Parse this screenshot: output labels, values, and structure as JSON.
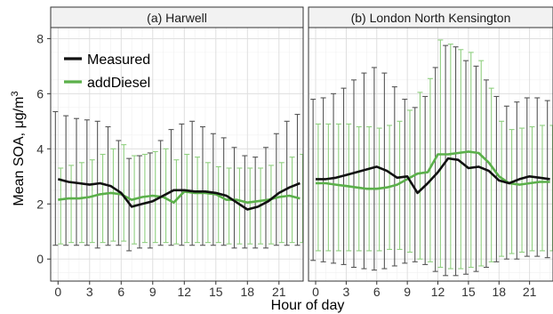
{
  "chart_data": {
    "type": "line",
    "xlabel": "Hour of day",
    "ylabel_parts": {
      "main": "Mean SOA,  μg/m",
      "superscript": "3"
    },
    "ylim": [
      -0.8,
      8.4
    ],
    "xlim": [
      -0.7,
      23.3
    ],
    "y_ticks": [
      0,
      2,
      4,
      6,
      8
    ],
    "x_ticks": [
      0,
      3,
      6,
      9,
      12,
      15,
      18,
      21
    ],
    "legend": {
      "position": "top-left",
      "entries": [
        "Measured",
        "addDiesel"
      ]
    },
    "colors": {
      "Measured": "#111111",
      "addDiesel": "#5bb04a",
      "Measured_err": "#555555",
      "addDiesel_err": "#8fcf7f"
    },
    "grid": true,
    "panels": [
      {
        "title": "(a) Harwell",
        "x": [
          0,
          1,
          2,
          3,
          4,
          5,
          6,
          7,
          8,
          9,
          10,
          11,
          12,
          13,
          14,
          15,
          16,
          17,
          18,
          19,
          20,
          21,
          22,
          23
        ],
        "series": [
          {
            "name": "Measured",
            "values": [
              2.9,
              2.8,
              2.75,
              2.7,
              2.75,
              2.65,
              2.4,
              1.9,
              2.0,
              2.1,
              2.3,
              2.5,
              2.5,
              2.45,
              2.45,
              2.4,
              2.3,
              2.05,
              1.8,
              1.9,
              2.1,
              2.4,
              2.6,
              2.75
            ],
            "lower": [
              0.5,
              0.5,
              0.5,
              0.5,
              0.4,
              0.5,
              0.5,
              0.3,
              0.4,
              0.4,
              0.5,
              0.5,
              0.5,
              0.5,
              0.5,
              0.5,
              0.5,
              0.4,
              0.4,
              0.4,
              0.4,
              0.5,
              0.5,
              0.5
            ],
            "upper": [
              5.35,
              5.2,
              5.1,
              5.05,
              5.0,
              4.8,
              4.3,
              3.65,
              3.75,
              3.85,
              4.3,
              4.7,
              4.9,
              5.0,
              4.8,
              4.55,
              4.4,
              4.05,
              3.75,
              3.7,
              4.05,
              4.55,
              5.0,
              5.25
            ]
          },
          {
            "name": "addDiesel",
            "values": [
              2.15,
              2.2,
              2.2,
              2.25,
              2.35,
              2.4,
              2.35,
              2.15,
              2.25,
              2.3,
              2.25,
              2.05,
              2.45,
              2.4,
              2.4,
              2.35,
              2.15,
              2.15,
              2.05,
              2.1,
              2.15,
              2.25,
              2.3,
              2.2
            ],
            "lower": [
              0.55,
              0.6,
              0.6,
              0.6,
              0.6,
              0.65,
              0.65,
              0.55,
              0.6,
              0.6,
              0.6,
              0.55,
              0.6,
              0.6,
              0.6,
              0.6,
              0.55,
              0.55,
              0.55,
              0.55,
              0.55,
              0.6,
              0.6,
              0.6
            ],
            "upper": [
              3.3,
              3.4,
              3.5,
              3.6,
              3.8,
              4.0,
              4.15,
              3.75,
              3.8,
              3.9,
              4.0,
              3.6,
              3.8,
              3.7,
              3.5,
              3.35,
              3.3,
              3.3,
              3.3,
              3.3,
              3.4,
              3.5,
              3.7,
              3.8
            ]
          }
        ]
      },
      {
        "title": "(b) London North Kensington",
        "x": [
          0,
          1,
          2,
          3,
          4,
          5,
          6,
          7,
          8,
          9,
          10,
          11,
          12,
          13,
          14,
          15,
          16,
          17,
          18,
          19,
          20,
          21,
          22,
          23
        ],
        "series": [
          {
            "name": "Measured",
            "values": [
              2.9,
              2.9,
              2.95,
              3.05,
              3.15,
              3.25,
              3.35,
              3.2,
              2.95,
              3.0,
              2.4,
              2.75,
              3.15,
              3.65,
              3.6,
              3.3,
              3.35,
              3.2,
              2.85,
              2.75,
              2.9,
              3.0,
              2.95,
              2.9
            ],
            "lower": [
              -0.05,
              -0.1,
              -0.15,
              -0.2,
              -0.3,
              -0.35,
              -0.4,
              -0.35,
              -0.25,
              -0.15,
              -0.1,
              -0.2,
              -0.45,
              -0.6,
              -0.6,
              -0.55,
              -0.45,
              -0.3,
              -0.1,
              0.0,
              0.0,
              0.1,
              0.1,
              0.05
            ],
            "upper": [
              5.8,
              5.85,
              6.0,
              6.2,
              6.5,
              6.75,
              6.95,
              6.75,
              6.25,
              5.8,
              5.5,
              5.9,
              6.95,
              7.75,
              7.7,
              7.2,
              7.0,
              6.5,
              5.9,
              5.55,
              5.7,
              5.85,
              5.85,
              5.75
            ]
          },
          {
            "name": "addDiesel",
            "values": [
              2.75,
              2.75,
              2.7,
              2.65,
              2.6,
              2.55,
              2.55,
              2.6,
              2.7,
              2.9,
              3.1,
              3.15,
              3.8,
              3.8,
              3.85,
              3.9,
              3.85,
              3.5,
              3.0,
              2.75,
              2.7,
              2.75,
              2.8,
              2.8
            ],
            "lower": [
              0.3,
              0.3,
              0.3,
              0.3,
              0.3,
              0.3,
              0.3,
              0.35,
              0.35,
              0.25,
              0.0,
              -0.1,
              -0.3,
              -0.35,
              -0.35,
              -0.3,
              -0.25,
              -0.1,
              0.1,
              0.2,
              0.25,
              0.3,
              0.3,
              0.3
            ],
            "upper": [
              4.9,
              4.9,
              4.9,
              4.9,
              4.8,
              4.8,
              4.75,
              4.85,
              5.0,
              5.4,
              6.05,
              6.55,
              7.95,
              7.8,
              7.6,
              7.5,
              7.2,
              6.2,
              5.0,
              4.7,
              4.75,
              4.8,
              4.85,
              4.85
            ]
          }
        ]
      }
    ]
  }
}
